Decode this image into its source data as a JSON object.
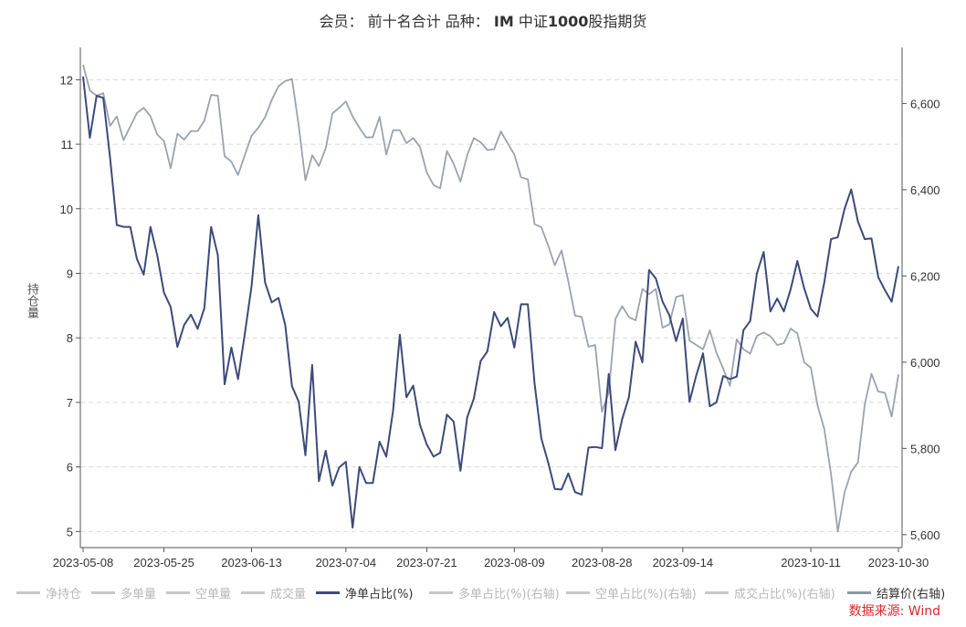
{
  "title": {
    "prefix": "会员： 前十名合计 品种：",
    "bold": "IM",
    "suffix": "中证",
    "bold2": "1000",
    "suffix2": "股指期货"
  },
  "chart_data": {
    "type": "line",
    "title": "会员： 前十名合计 品种： IM 中证1000股指期货",
    "ylabel": "持仓量",
    "ylim_left": [
      4.75,
      12.5
    ],
    "ylim_right": [
      5570,
      6730
    ],
    "yticks_left": [
      "5",
      "6",
      "7",
      "8",
      "9",
      "10",
      "11",
      "12"
    ],
    "yticks_right": [
      "5,600",
      "5,800",
      "6,000",
      "6,200",
      "6,400",
      "6,600"
    ],
    "xticks": [
      "2023-05-08",
      "2023-05-25",
      "2023-06-13",
      "2023-07-04",
      "2023-07-21",
      "2023-08-09",
      "2023-08-28",
      "2023-09-14",
      "2023-10-11",
      "2023-10-30"
    ],
    "legend_placement": "bottom",
    "series": [
      {
        "name": "净单占比(%)",
        "axis": "left",
        "color": "#3d4a7a",
        "values": [
          12.05,
          11.1,
          11.75,
          11.72,
          10.8,
          9.75,
          9.72,
          9.72,
          9.22,
          8.98,
          9.72,
          9.28,
          8.7,
          8.48,
          7.86,
          8.2,
          8.36,
          8.14,
          8.46,
          9.72,
          9.28,
          7.28,
          7.85,
          7.36,
          8.06,
          8.8,
          9.9,
          8.86,
          8.55,
          8.62,
          8.2,
          7.25,
          7.01,
          6.18,
          7.58,
          5.78,
          6.25,
          5.71,
          5.99,
          6.08,
          5.06,
          6.0,
          5.75,
          5.75,
          6.39,
          6.16,
          6.87,
          8.05,
          7.08,
          7.26,
          6.65,
          6.35,
          6.16,
          6.22,
          6.81,
          6.7,
          5.94,
          6.77,
          7.06,
          7.64,
          7.79,
          8.4,
          8.18,
          8.31,
          7.85,
          8.52,
          8.52,
          7.29,
          6.44,
          6.08,
          5.66,
          5.65,
          5.9,
          5.61,
          5.57,
          6.3,
          6.31,
          6.29,
          7.44,
          6.26,
          6.74,
          7.08,
          7.94,
          7.62,
          9.05,
          8.92,
          8.56,
          8.35,
          7.95,
          8.3,
          7.01,
          7.42,
          7.76,
          6.94,
          7.0,
          7.41,
          7.36,
          7.4,
          8.12,
          8.26,
          9.0,
          9.33,
          8.41,
          8.61,
          8.41,
          8.75,
          9.19,
          8.77,
          8.45,
          8.33,
          8.86,
          9.53,
          9.56,
          10.0,
          10.3,
          9.8,
          9.53,
          9.54,
          8.94,
          8.74,
          8.56,
          9.11
        ]
      },
      {
        "name": "结算价(右轴)",
        "axis": "right",
        "color": "#9aa3ad",
        "values": [
          6690,
          6630,
          6618,
          6624,
          6548,
          6570,
          6515,
          6547,
          6578,
          6590,
          6570,
          6528,
          6513,
          6450,
          6530,
          6516,
          6536,
          6536,
          6560,
          6620,
          6618,
          6478,
          6465,
          6434,
          6480,
          6525,
          6544,
          6568,
          6608,
          6640,
          6652,
          6657,
          6548,
          6422,
          6480,
          6455,
          6496,
          6577,
          6590,
          6605,
          6570,
          6544,
          6521,
          6522,
          6569,
          6482,
          6538,
          6538,
          6508,
          6520,
          6499,
          6440,
          6411,
          6403,
          6490,
          6460,
          6419,
          6480,
          6520,
          6510,
          6492,
          6494,
          6535,
          6508,
          6482,
          6429,
          6424,
          6320,
          6313,
          6272,
          6225,
          6259,
          6188,
          6108,
          6105,
          6036,
          6040,
          5885,
          5930,
          6100,
          6130,
          6105,
          6097,
          6170,
          6158,
          6170,
          6080,
          6088,
          6151,
          6156,
          6050,
          6040,
          6030,
          6074,
          6022,
          5985,
          5945,
          6053,
          6030,
          6020,
          6061,
          6069,
          6060,
          6040,
          6044,
          6078,
          6067,
          6000,
          5987,
          5900,
          5845,
          5740,
          5607,
          5698,
          5746,
          5768,
          5902,
          5973,
          5932,
          5929,
          5874,
          5972
        ]
      }
    ],
    "legend_entries": [
      {
        "name": "净持仓",
        "color": "#c8c8c8"
      },
      {
        "name": "多单量",
        "color": "#c8c8c8"
      },
      {
        "name": "空单量",
        "color": "#c8c8c8"
      },
      {
        "name": "成交量",
        "color": "#c8c8c8"
      },
      {
        "name": "净单占比(%)",
        "color": "#3d4a7a"
      },
      {
        "name": "多单占比(%)(右轴)",
        "color": "#c8c8c8"
      },
      {
        "name": "空单占比(%)(右轴)",
        "color": "#c8c8c8"
      },
      {
        "name": "成交占比(%)(右轴)",
        "color": "#c8c8c8"
      },
      {
        "name": "结算价(右轴)",
        "color": "#8e98a3"
      }
    ]
  },
  "source": "数据来源: Wind"
}
